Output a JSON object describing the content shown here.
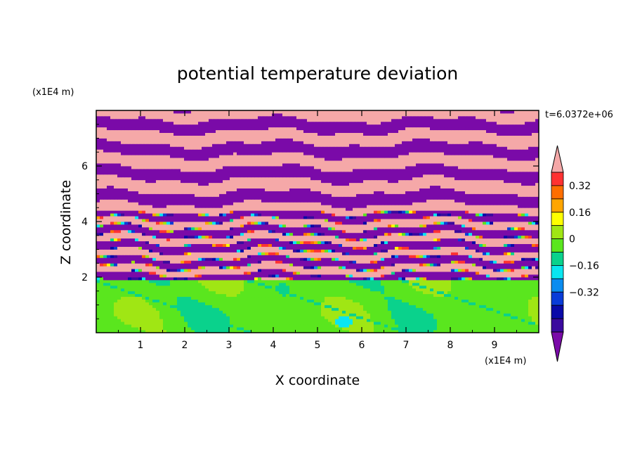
{
  "chart_data": {
    "type": "heatmap",
    "title": "potential temperature deviation",
    "xlabel": "X coordinate",
    "ylabel": "Z coordinate",
    "x_unit": "(x1E4 m)",
    "y_unit": "(x1E4 m)",
    "time_label": "t=6.0372e+06",
    "xlim": [
      0,
      10
    ],
    "ylim": [
      0,
      8
    ],
    "x_ticks": [
      "1",
      "2",
      "3",
      "4",
      "5",
      "6",
      "7",
      "8",
      "9"
    ],
    "y_ticks": [
      "2",
      "4",
      "6"
    ],
    "colorbar": {
      "levels": [
        -0.48,
        -0.4,
        -0.32,
        -0.24,
        -0.16,
        -0.08,
        0,
        0.08,
        0.16,
        0.24,
        0.32,
        0.4,
        0.48
      ],
      "tick_labels": [
        "0.32",
        "0.16",
        "0",
        "-0.16",
        "-0.32"
      ],
      "colors": [
        "#7a0aa8",
        "#3a0a9e",
        "#0a0aa8",
        "#0a3cd8",
        "#0a8cf0",
        "#0ae6f0",
        "#0ad28c",
        "#5ae61e",
        "#a0e614",
        "#ffff00",
        "#ffa500",
        "#ff6e00",
        "#ff3232",
        "#f5a8a8"
      ]
    },
    "layers": [
      {
        "z_range": [
          0,
          1.9
        ],
        "value_range": [
          -0.08,
          0.16
        ],
        "description_values": [
          0,
          0.08
        ]
      },
      {
        "z_range": [
          1.9,
          4.4
        ],
        "value_range": [
          -0.4,
          0.48
        ],
        "alternating": [
          0.48,
          -0.48
        ]
      },
      {
        "z_range": [
          4.4,
          8
        ],
        "value_range": [
          -0.48,
          0.48
        ],
        "alternating": [
          0.48,
          -0.48
        ]
      }
    ]
  }
}
